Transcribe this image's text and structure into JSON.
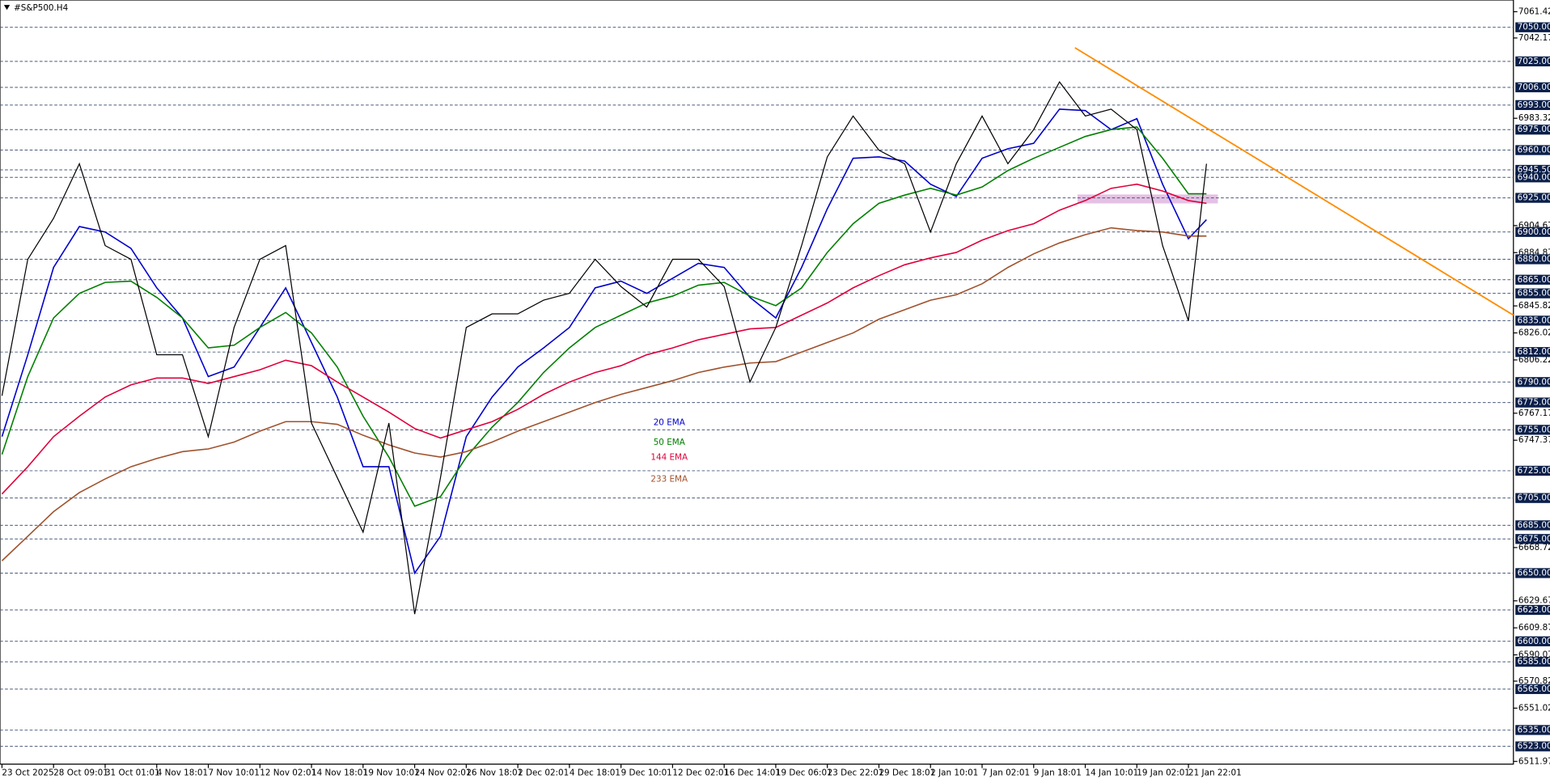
{
  "chart_data": {
    "type": "line",
    "title": "#S&P500.H4",
    "color": "#000000",
    "x": [
      0,
      10,
      20,
      30,
      40,
      50,
      60,
      70,
      80,
      90,
      100,
      110,
      120,
      130,
      140,
      150,
      160,
      170,
      180,
      190,
      200,
      210,
      220,
      230,
      240,
      250,
      260,
      270,
      280,
      290,
      300,
      310,
      320,
      330,
      340,
      350,
      360,
      370,
      380,
      390,
      400,
      410,
      420,
      430,
      440,
      450,
      460,
      467
    ],
    "values": [
      6780,
      6880,
      6910,
      6950,
      6890,
      6880,
      6810,
      6810,
      6750,
      6830,
      6880,
      6890,
      6760,
      6720,
      6680,
      6760,
      6620,
      6720,
      6830,
      6840,
      6840,
      6850,
      6855,
      6880,
      6860,
      6845,
      6880,
      6880,
      6860,
      6790,
      6830,
      6890,
      6955,
      6985,
      6960,
      6950,
      6900,
      6950,
      6985,
      6950,
      6975,
      7010,
      6985,
      6990,
      6975,
      6890,
      6835,
      6950
    ],
    "series": [
      {
        "name": "20 EMA",
        "color": "#0000cc",
        "values": [
          6750,
          6810,
          6874,
          6904,
          6900,
          6888,
          6859,
          6837,
          6794,
          6801,
          6830,
          6859,
          6819,
          6779,
          6728,
          6728,
          6650,
          6677,
          6750,
          6779,
          6801,
          6815,
          6830,
          6859,
          6864,
          6855,
          6866,
          6877,
          6874,
          6852,
          6837,
          6874,
          6917,
          6954,
          6955,
          6952,
          6935,
          6926,
          6954,
          6961,
          6965,
          6990,
          6989,
          6975,
          6983,
          6935,
          6895,
          6909
        ]
      },
      {
        "name": "50 EMA",
        "color": "#008000",
        "values": [
          6737,
          6794,
          6837,
          6855,
          6863,
          6864,
          6852,
          6837,
          6815,
          6817,
          6830,
          6841,
          6826,
          6801,
          6765,
          6735,
          6699,
          6706,
          6735,
          6757,
          6775,
          6797,
          6815,
          6830,
          6839,
          6848,
          6853,
          6861,
          6863,
          6853,
          6846,
          6859,
          6885,
          6906,
          6921,
          6927,
          6932,
          6927,
          6933,
          6945,
          6954,
          6962,
          6970,
          6975,
          6977,
          6954,
          6928,
          6928
        ]
      },
      {
        "name": "144 EMA",
        "color": "#e0003c",
        "values": [
          6708,
          6728,
          6750,
          6765,
          6779,
          6788,
          6793,
          6793,
          6789,
          6794,
          6799,
          6806,
          6802,
          6790,
          6779,
          6768,
          6756,
          6749,
          6755,
          6761,
          6770,
          6781,
          6790,
          6797,
          6802,
          6810,
          6815,
          6821,
          6825,
          6829,
          6830,
          6839,
          6848,
          6859,
          6868,
          6876,
          6881,
          6885,
          6894,
          6901,
          6906,
          6916,
          6923,
          6932,
          6935,
          6930,
          6923,
          6921
        ]
      },
      {
        "name": "233 EMA",
        "color": "#a0522d",
        "values": [
          6659,
          6677,
          6695,
          6709,
          6719,
          6728,
          6734,
          6739,
          6741,
          6746,
          6754,
          6761,
          6761,
          6759,
          6751,
          6744,
          6738,
          6735,
          6739,
          6746,
          6754,
          6761,
          6768,
          6775,
          6781,
          6786,
          6791,
          6797,
          6801,
          6804,
          6805,
          6812,
          6819,
          6826,
          6836,
          6843,
          6850,
          6854,
          6862,
          6874,
          6884,
          6892,
          6898,
          6903,
          6901,
          6900,
          6897,
          6897
        ]
      }
    ],
    "trendline": {
      "color": "#ff8c00",
      "x": [
        416,
        586
      ],
      "values": [
        7035,
        6839
      ]
    },
    "xlim": [
      0,
      586
    ],
    "ylim": [
      6510,
      7070
    ],
    "xticks": [
      {
        "value": 0,
        "label": "23 Oct 2025"
      },
      {
        "value": 20,
        "label": "28 Oct 09:01"
      },
      {
        "value": 40,
        "label": "31 Oct 01:01"
      },
      {
        "value": 60,
        "label": "4 Nov 18:01"
      },
      {
        "value": 80,
        "label": "7 Nov 10:01"
      },
      {
        "value": 100,
        "label": "12 Nov 02:01"
      },
      {
        "value": 120,
        "label": "14 Nov 18:01"
      },
      {
        "value": 140,
        "label": "19 Nov 10:01"
      },
      {
        "value": 160,
        "label": "24 Nov 02:01"
      },
      {
        "value": 180,
        "label": "26 Nov 18:01"
      },
      {
        "value": 200,
        "label": "2 Dec 02:01"
      },
      {
        "value": 220,
        "label": "4 Dec 18:01"
      },
      {
        "value": 240,
        "label": "9 Dec 10:01"
      },
      {
        "value": 260,
        "label": "12 Dec 02:01"
      },
      {
        "value": 280,
        "label": "16 Dec 14:01"
      },
      {
        "value": 300,
        "label": "19 Dec 06:01"
      },
      {
        "value": 320,
        "label": "23 Dec 22:01"
      },
      {
        "value": 340,
        "label": "29 Dec 18:01"
      },
      {
        "value": 360,
        "label": "2 Jan 10:01"
      },
      {
        "value": 380,
        "label": "7 Jan 02:01"
      },
      {
        "value": 400,
        "label": "9 Jan 18:01"
      },
      {
        "value": 420,
        "label": "14 Jan 10:01"
      },
      {
        "value": 440,
        "label": "19 Jan 02:01"
      },
      {
        "value": 460,
        "label": "21 Jan 22:01"
      }
    ],
    "yticks": [
      7061.42,
      7042.17,
      6983.32,
      6904.67,
      6884.87,
      6845.82,
      6826.02,
      6806.22,
      6767.17,
      6747.37,
      6668.72,
      6629.67,
      6609.87,
      6590.07,
      6570.82,
      6551.02,
      6511.97
    ],
    "levels": [
      {
        "value": 7050,
        "label": "7050.00"
      },
      {
        "value": 7025,
        "label": "7025.00"
      },
      {
        "value": 7006,
        "label": "7006.00"
      },
      {
        "value": 6993,
        "label": "6993.00"
      },
      {
        "value": 6975,
        "label": "6975.00"
      },
      {
        "value": 6960,
        "label": "6960.00"
      },
      {
        "value": 6945.5,
        "label": "6945.50"
      },
      {
        "value": 6940,
        "label": "6940.00"
      },
      {
        "value": 6925,
        "label": "6925.00"
      },
      {
        "value": 6900,
        "label": "6900.00"
      },
      {
        "value": 6880,
        "label": "6880.00"
      },
      {
        "value": 6865,
        "label": "6865.00"
      },
      {
        "value": 6855,
        "label": "6855.00"
      },
      {
        "value": 6835,
        "label": "6835.00"
      },
      {
        "value": 6812,
        "label": "6812.00"
      },
      {
        "value": 6790,
        "label": "6790.00"
      },
      {
        "value": 6775,
        "label": "6775.00"
      },
      {
        "value": 6755,
        "label": "6755.00"
      },
      {
        "value": 6725,
        "label": "6725.00"
      },
      {
        "value": 6705,
        "label": "6705.00"
      },
      {
        "value": 6685,
        "label": "6685.00"
      },
      {
        "value": 6675,
        "label": "6675.00"
      },
      {
        "value": 6650,
        "label": "6650.00"
      },
      {
        "value": 6623,
        "label": "6623.00"
      },
      {
        "value": 6600,
        "label": "6600.00"
      },
      {
        "value": 6585,
        "label": "6585.00"
      },
      {
        "value": 6565,
        "label": "6565.00"
      },
      {
        "value": 6535,
        "label": "6535.00"
      },
      {
        "value": 6523,
        "label": "6523.00"
      }
    ],
    "grid": false
  }
}
